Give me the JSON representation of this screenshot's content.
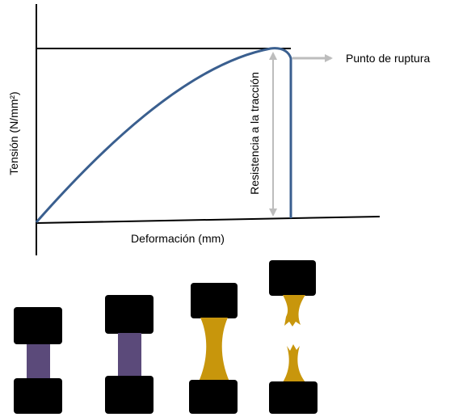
{
  "labels": {
    "y_axis": "Tensión (N/mm²)",
    "x_axis": "Deformación (mm)",
    "tensile_strength": "Resistencia a la tracción",
    "rupture_point": "Punto de ruptura"
  }
}
